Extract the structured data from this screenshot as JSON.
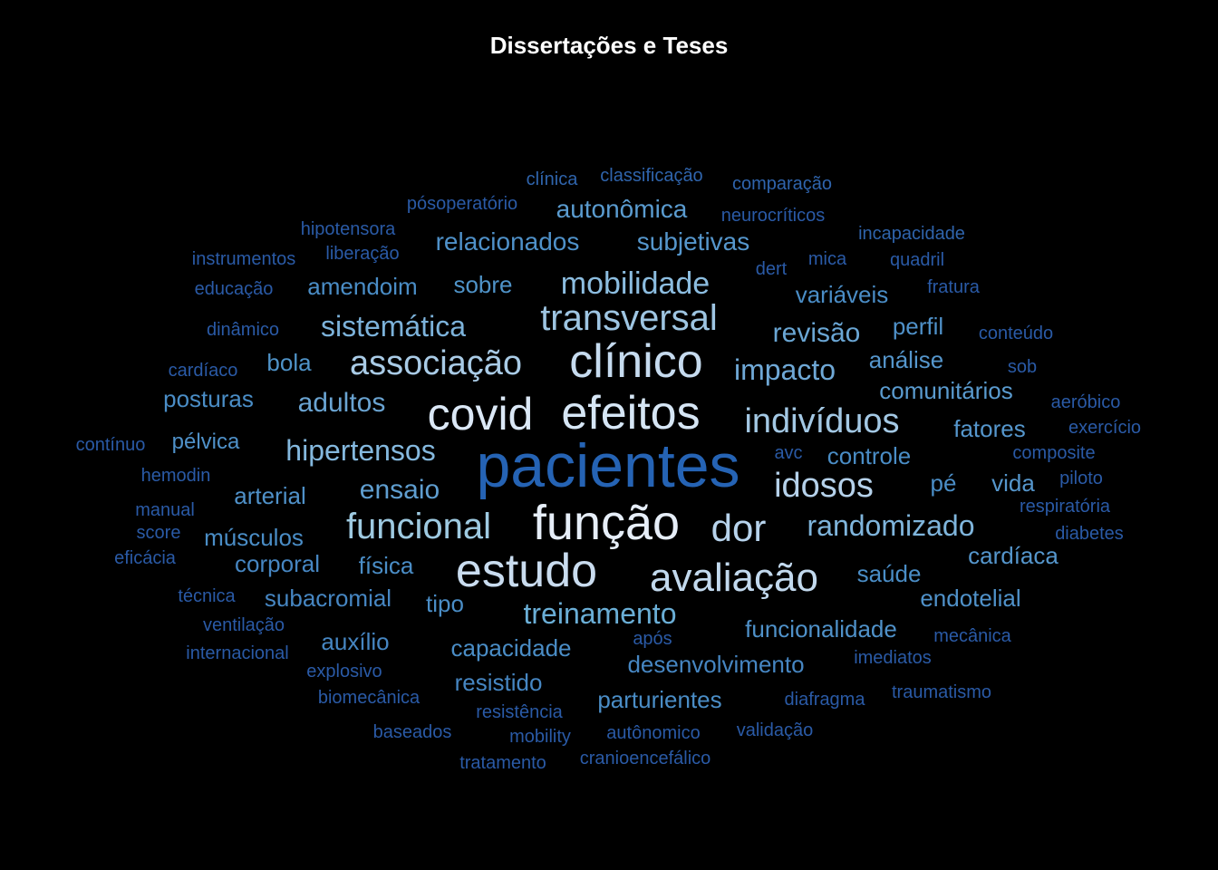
{
  "chart_data": {
    "type": "wordcloud",
    "title": "Dissertações e Teses",
    "words": [
      {
        "text": "pacientes",
        "tier": 1,
        "color": "#2563b4"
      },
      {
        "text": "função",
        "tier": 2,
        "color": "#e6eef8"
      },
      {
        "text": "estudo",
        "tier": 2,
        "color": "#c9dcef"
      },
      {
        "text": "efeitos",
        "tier": 2,
        "color": "#d6e6f5"
      },
      {
        "text": "covid",
        "tier": 2,
        "color": "#dbe8f6"
      },
      {
        "text": "clínico",
        "tier": 2,
        "color": "#c6dbef"
      },
      {
        "text": "avaliação",
        "tier": 3,
        "color": "#c2d9ee"
      },
      {
        "text": "dor",
        "tier": 3,
        "color": "#b7d3ec"
      },
      {
        "text": "funcional",
        "tier": 3,
        "color": "#9ecae1"
      },
      {
        "text": "transversal",
        "tier": 3,
        "color": "#9ec5e2"
      },
      {
        "text": "associação",
        "tier": 3,
        "color": "#a9cbe6"
      },
      {
        "text": "idosos",
        "tier": 3,
        "color": "#b5d1ea"
      },
      {
        "text": "indivíduos",
        "tier": 3,
        "color": "#a3c8e4"
      },
      {
        "text": "mobilidade",
        "tier": 4,
        "color": "#8cbde0"
      },
      {
        "text": "randomizado",
        "tier": 4,
        "color": "#7fb5dc"
      },
      {
        "text": "treinamento",
        "tier": 4,
        "color": "#6aaed6"
      },
      {
        "text": "hipertensos",
        "tier": 4,
        "color": "#84b8de"
      },
      {
        "text": "sistemática",
        "tier": 4,
        "color": "#7cb2da"
      },
      {
        "text": "impacto",
        "tier": 4,
        "color": "#6fa8d6"
      },
      {
        "text": "revisão",
        "tier": 4,
        "color": "#6aa6d4"
      },
      {
        "text": "adultos",
        "tier": 4,
        "color": "#6aa4d2"
      },
      {
        "text": "ensaio",
        "tier": 4,
        "color": "#5f9ed0"
      },
      {
        "text": "autonômica",
        "tier": 5,
        "color": "#5a9bcf"
      },
      {
        "text": "relacionados",
        "tier": 5,
        "color": "#4f91c9"
      },
      {
        "text": "subjetivas",
        "tier": 5,
        "color": "#5596cc"
      },
      {
        "text": "amendoim",
        "tier": 5,
        "color": "#4a8dc6"
      },
      {
        "text": "sobre",
        "tier": 5,
        "color": "#4f93c8"
      },
      {
        "text": "variáveis",
        "tier": 5,
        "color": "#4a8dc6"
      },
      {
        "text": "perfil",
        "tier": 5,
        "color": "#4f91c9"
      },
      {
        "text": "análise",
        "tier": 5,
        "color": "#5596cc"
      },
      {
        "text": "bola",
        "tier": 5,
        "color": "#4f93c8"
      },
      {
        "text": "comunitários",
        "tier": 5,
        "color": "#5a9bcf"
      },
      {
        "text": "posturas",
        "tier": 5,
        "color": "#4a8dc6"
      },
      {
        "text": "fatores",
        "tier": 5,
        "color": "#5596cc"
      },
      {
        "text": "pélvica",
        "tier": 5,
        "color": "#4f91c9"
      },
      {
        "text": "controle",
        "tier": 5,
        "color": "#4a8dc6"
      },
      {
        "text": "arterial",
        "tier": 5,
        "color": "#4f91c9"
      },
      {
        "text": "pé",
        "tier": 5,
        "color": "#4a8dc6"
      },
      {
        "text": "vida",
        "tier": 5,
        "color": "#5596cc"
      },
      {
        "text": "músculos",
        "tier": 5,
        "color": "#4a8dc6"
      },
      {
        "text": "corporal",
        "tier": 5,
        "color": "#4686c2"
      },
      {
        "text": "física",
        "tier": 5,
        "color": "#4a8dc6"
      },
      {
        "text": "cardíaca",
        "tier": 5,
        "color": "#5596cc"
      },
      {
        "text": "saúde",
        "tier": 5,
        "color": "#4a8dc6"
      },
      {
        "text": "subacromial",
        "tier": 5,
        "color": "#4686c2"
      },
      {
        "text": "tipo",
        "tier": 5,
        "color": "#4a8dc6"
      },
      {
        "text": "endotelial",
        "tier": 5,
        "color": "#4f91c9"
      },
      {
        "text": "funcionalidade",
        "tier": 5,
        "color": "#4f91c9"
      },
      {
        "text": "auxílio",
        "tier": 5,
        "color": "#4686c2"
      },
      {
        "text": "capacidade",
        "tier": 5,
        "color": "#4a8dc6"
      },
      {
        "text": "desenvolvimento",
        "tier": 5,
        "color": "#4686c2"
      },
      {
        "text": "resistido",
        "tier": 5,
        "color": "#4686c2"
      },
      {
        "text": "parturientes",
        "tier": 5,
        "color": "#4a8dc6"
      },
      {
        "text": "clínica",
        "tier": 6,
        "color": "#2f64ac"
      },
      {
        "text": "classificação",
        "tier": 6,
        "color": "#2f64ac"
      },
      {
        "text": "comparação",
        "tier": 6,
        "color": "#2f64ac"
      },
      {
        "text": "pósoperatório",
        "tier": 6,
        "color": "#2a5aa6"
      },
      {
        "text": "neurocríticos",
        "tier": 6,
        "color": "#2a5aa6"
      },
      {
        "text": "hipotensora",
        "tier": 6,
        "color": "#2a5aa6"
      },
      {
        "text": "incapacidade",
        "tier": 6,
        "color": "#2f64ac"
      },
      {
        "text": "instrumentos",
        "tier": 6,
        "color": "#2a5aa6"
      },
      {
        "text": "liberação",
        "tier": 6,
        "color": "#2a5aa6"
      },
      {
        "text": "mica",
        "tier": 6,
        "color": "#2a5aa6"
      },
      {
        "text": "quadril",
        "tier": 6,
        "color": "#2a5aa6"
      },
      {
        "text": "dert",
        "tier": 6,
        "color": "#2a5aa6"
      },
      {
        "text": "educação",
        "tier": 6,
        "color": "#2a5aa6"
      },
      {
        "text": "fratura",
        "tier": 6,
        "color": "#2a5aa6"
      },
      {
        "text": "dinâmico",
        "tier": 6,
        "color": "#2a5aa6"
      },
      {
        "text": "conteúdo",
        "tier": 6,
        "color": "#2a5aa6"
      },
      {
        "text": "cardíaco",
        "tier": 6,
        "color": "#2a5aa6"
      },
      {
        "text": "sob",
        "tier": 6,
        "color": "#2a5aa6"
      },
      {
        "text": "aeróbico",
        "tier": 6,
        "color": "#2a5aa6"
      },
      {
        "text": "exercício",
        "tier": 6,
        "color": "#2a5aa6"
      },
      {
        "text": "contínuo",
        "tier": 6,
        "color": "#2a5aa6"
      },
      {
        "text": "avc",
        "tier": 6,
        "color": "#2a5aa6"
      },
      {
        "text": "composite",
        "tier": 6,
        "color": "#2a5aa6"
      },
      {
        "text": "hemodin",
        "tier": 6,
        "color": "#2a5aa6"
      },
      {
        "text": "piloto",
        "tier": 6,
        "color": "#2a5aa6"
      },
      {
        "text": "manual",
        "tier": 6,
        "color": "#2a5aa6"
      },
      {
        "text": "respiratória",
        "tier": 6,
        "color": "#2a5aa6"
      },
      {
        "text": "score",
        "tier": 6,
        "color": "#2a5aa6"
      },
      {
        "text": "diabetes",
        "tier": 6,
        "color": "#2a5aa6"
      },
      {
        "text": "eficácia",
        "tier": 6,
        "color": "#2a5aa6"
      },
      {
        "text": "técnica",
        "tier": 6,
        "color": "#2a5aa6"
      },
      {
        "text": "ventilação",
        "tier": 6,
        "color": "#2a5aa6"
      },
      {
        "text": "após",
        "tier": 6,
        "color": "#2a5aa6"
      },
      {
        "text": "mecânica",
        "tier": 6,
        "color": "#2a5aa6"
      },
      {
        "text": "internacional",
        "tier": 6,
        "color": "#2a5aa6"
      },
      {
        "text": "imediatos",
        "tier": 6,
        "color": "#2a5aa6"
      },
      {
        "text": "explosivo",
        "tier": 6,
        "color": "#2a5aa6"
      },
      {
        "text": "biomecânica",
        "tier": 6,
        "color": "#2a5aa6"
      },
      {
        "text": "diafragma",
        "tier": 6,
        "color": "#2a5aa6"
      },
      {
        "text": "traumatismo",
        "tier": 6,
        "color": "#2a5aa6"
      },
      {
        "text": "resistência",
        "tier": 6,
        "color": "#2a5aa6"
      },
      {
        "text": "baseados",
        "tier": 6,
        "color": "#2a5aa6"
      },
      {
        "text": "mobility",
        "tier": 6,
        "color": "#2a5aa6"
      },
      {
        "text": "autônomico",
        "tier": 6,
        "color": "#2a5aa6"
      },
      {
        "text": "validação",
        "tier": 6,
        "color": "#2a5aa6"
      },
      {
        "text": "tratamento",
        "tier": 6,
        "color": "#2a5aa6"
      },
      {
        "text": "cranioencefálico",
        "tier": 6,
        "color": "#2a5aa6"
      }
    ]
  }
}
